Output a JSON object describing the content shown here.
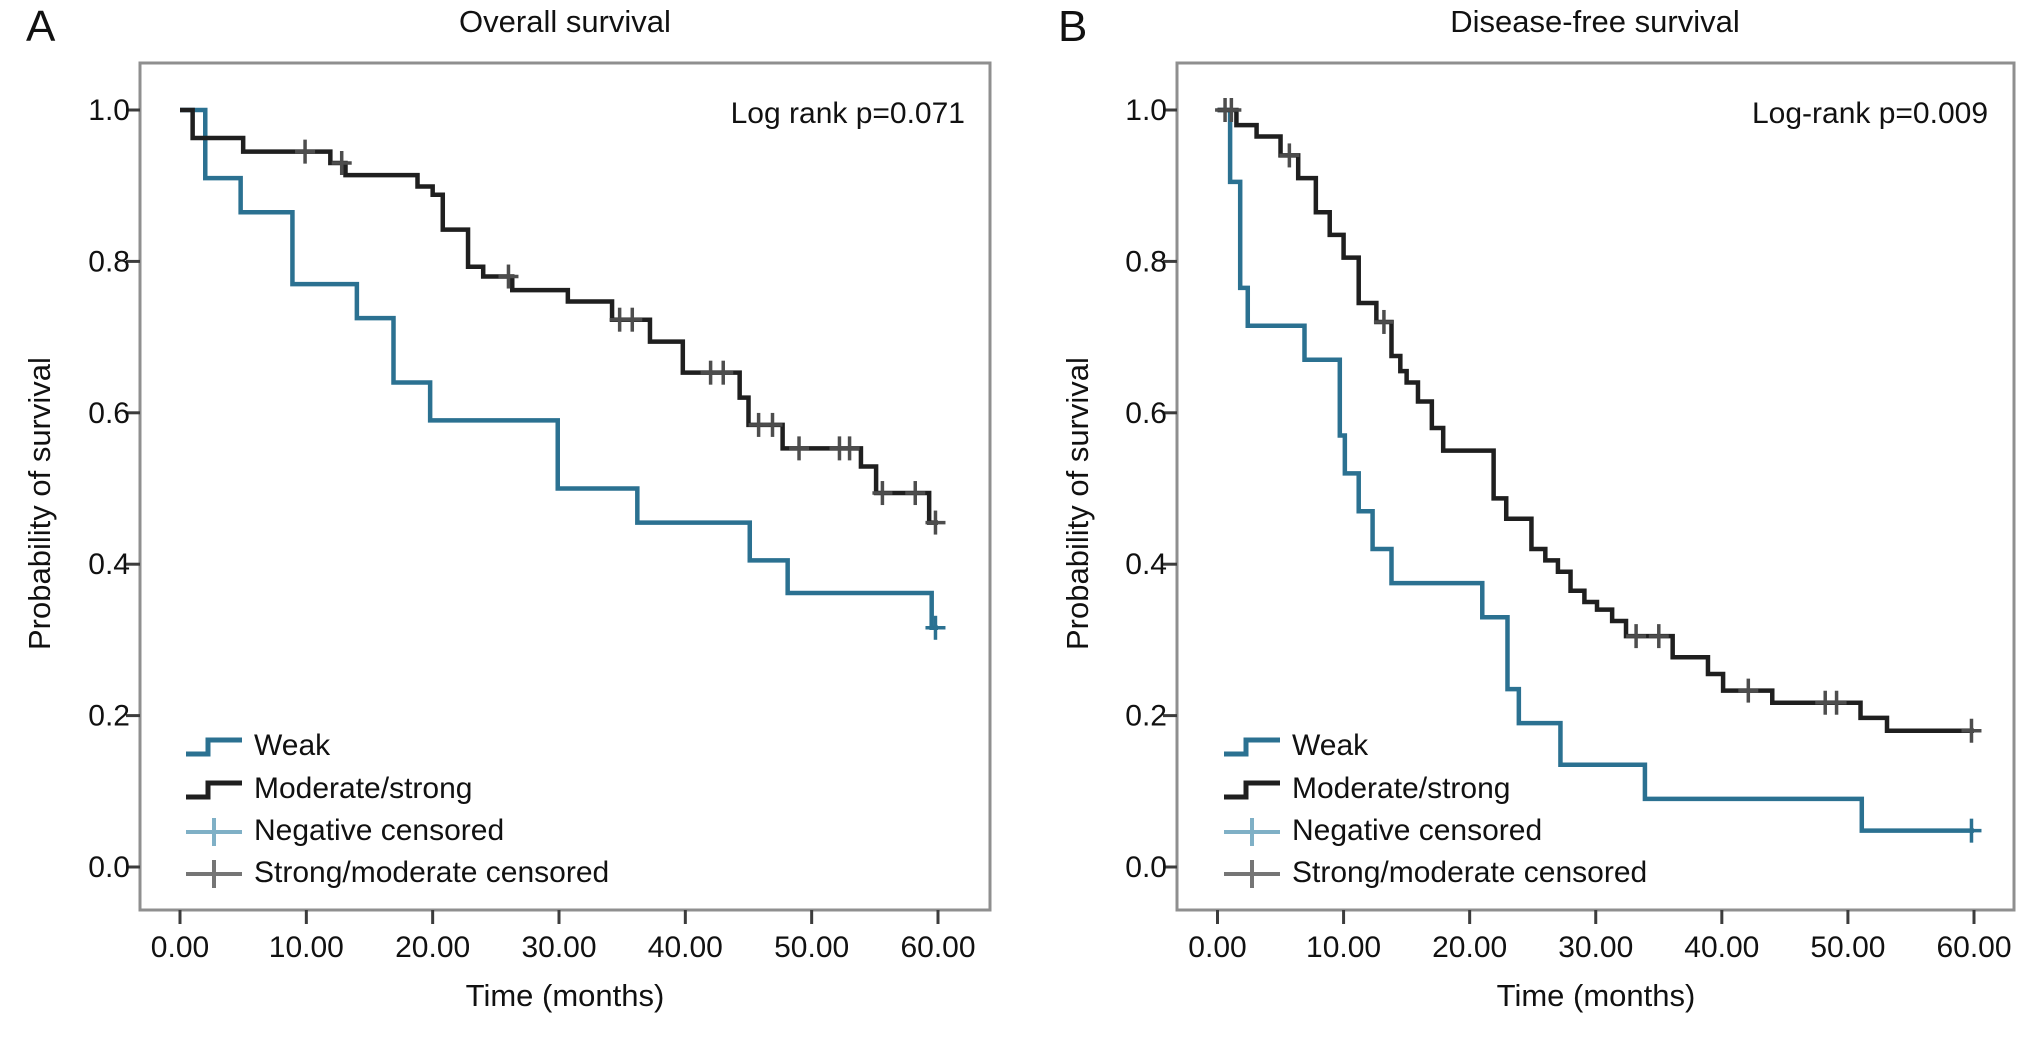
{
  "figure": {
    "background": "#ffffff",
    "border_color": "#8f8f8f",
    "tick_color": "#3c3c3c",
    "panels": [
      {
        "label": "A",
        "title": "Overall survival",
        "annotation": "Log rank p=0.071",
        "xlabel": "Time (months)",
        "ylabel": "Probability of survival",
        "legend": [
          {
            "label": "Weak",
            "swatch": "step",
            "color": "#2b7191"
          },
          {
            "label": "Moderate/strong",
            "swatch": "step",
            "color": "#1f1f1f"
          },
          {
            "label": "Negative censored",
            "swatch": "plus",
            "color": "#7fb0c6"
          },
          {
            "label": "Strong/moderate censored",
            "swatch": "plus",
            "color": "#757575"
          }
        ]
      },
      {
        "label": "B",
        "title": "Disease-free survival",
        "annotation": "Log-rank p=0.009",
        "xlabel": "Time (months)",
        "ylabel": "Probability of survival",
        "legend": [
          {
            "label": "Weak",
            "swatch": "step",
            "color": "#2b7191"
          },
          {
            "label": "Moderate/strong",
            "swatch": "step",
            "color": "#1f1f1f"
          },
          {
            "label": "Negative censored",
            "swatch": "plus",
            "color": "#7fb0c6"
          },
          {
            "label": "Strong/moderate censored",
            "swatch": "plus",
            "color": "#757575"
          }
        ]
      }
    ]
  },
  "chart_data": [
    {
      "type": "line",
      "subtype": "kaplan-meier-step",
      "title": "Overall survival",
      "xlabel": "Time (months)",
      "ylabel": "Probability of survival",
      "annotation": "Log rank p=0.071",
      "xlim": [
        0,
        60
      ],
      "ylim": [
        0.0,
        1.0
      ],
      "xtick_labels": [
        "0.00",
        "10.00",
        "20.00",
        "30.00",
        "40.00",
        "50.00",
        "60.00"
      ],
      "xtick_values": [
        0,
        10,
        20,
        30,
        40,
        50,
        60
      ],
      "ytick_labels": [
        "1.0",
        "0.8",
        "0.6",
        "0.4",
        "0.2",
        "0.0"
      ],
      "ytick_values": [
        1.0,
        0.8,
        0.6,
        0.4,
        0.2,
        0.0
      ],
      "grid": false,
      "legend_position": "lower-left",
      "series": [
        {
          "name": "Weak",
          "color": "#2b7191",
          "censor_color": "#2b7191",
          "points": [
            [
              0,
              1.0
            ],
            [
              2.0,
              0.91
            ],
            [
              4.8,
              0.865
            ],
            [
              8.9,
              0.77
            ],
            [
              14.0,
              0.725
            ],
            [
              16.9,
              0.64
            ],
            [
              19.8,
              0.59
            ],
            [
              29.9,
              0.5
            ],
            [
              36.2,
              0.455
            ],
            [
              45.1,
              0.405
            ],
            [
              48.1,
              0.362
            ],
            [
              59.5,
              0.316
            ]
          ],
          "censor_marks": [
            [
              59.8,
              0.316
            ]
          ]
        },
        {
          "name": "Moderate/strong",
          "color": "#1f1f1f",
          "censor_color": "#4d4d4d",
          "points": [
            [
              0,
              1.0
            ],
            [
              1.0,
              0.963
            ],
            [
              5.0,
              0.945
            ],
            [
              11.9,
              0.93
            ],
            [
              13.1,
              0.914
            ],
            [
              18.8,
              0.899
            ],
            [
              20.0,
              0.888
            ],
            [
              20.8,
              0.842
            ],
            [
              22.8,
              0.793
            ],
            [
              24.0,
              0.78
            ],
            [
              26.3,
              0.762
            ],
            [
              30.7,
              0.747
            ],
            [
              34.2,
              0.723
            ],
            [
              37.2,
              0.694
            ],
            [
              39.8,
              0.653
            ],
            [
              44.3,
              0.62
            ],
            [
              45.0,
              0.584
            ],
            [
              47.7,
              0.553
            ],
            [
              53.9,
              0.529
            ],
            [
              55.1,
              0.494
            ],
            [
              59.3,
              0.455
            ]
          ],
          "censor_marks": [
            [
              9.9,
              0.945
            ],
            [
              12.8,
              0.93
            ],
            [
              26.0,
              0.78
            ],
            [
              34.8,
              0.723
            ],
            [
              35.8,
              0.723
            ],
            [
              42.0,
              0.653
            ],
            [
              43.0,
              0.653
            ],
            [
              45.8,
              0.584
            ],
            [
              46.9,
              0.584
            ],
            [
              49.0,
              0.553
            ],
            [
              52.2,
              0.553
            ],
            [
              53.0,
              0.553
            ],
            [
              55.6,
              0.494
            ],
            [
              58.2,
              0.494
            ],
            [
              59.8,
              0.455
            ]
          ]
        }
      ]
    },
    {
      "type": "line",
      "subtype": "kaplan-meier-step",
      "title": "Disease-free survival",
      "xlabel": "Time (months)",
      "ylabel": "Probability of survival",
      "annotation": "Log-rank p=0.009",
      "xlim": [
        0,
        60
      ],
      "ylim": [
        0.0,
        1.0
      ],
      "xtick_labels": [
        "0.00",
        "10.00",
        "20.00",
        "30.00",
        "40.00",
        "50.00",
        "60.00"
      ],
      "xtick_values": [
        0,
        10,
        20,
        30,
        40,
        50,
        60
      ],
      "ytick_labels": [
        "1.0",
        "0.8",
        "0.6",
        "0.4",
        "0.2",
        "0.0"
      ],
      "ytick_values": [
        1.0,
        0.8,
        0.6,
        0.4,
        0.2,
        0.0
      ],
      "grid": false,
      "legend_position": "lower-left",
      "series": [
        {
          "name": "Weak",
          "color": "#2b7191",
          "censor_color": "#2b7191",
          "points": [
            [
              0,
              1.0
            ],
            [
              1.0,
              0.905
            ],
            [
              1.8,
              0.765
            ],
            [
              2.4,
              0.715
            ],
            [
              6.9,
              0.67
            ],
            [
              9.7,
              0.57
            ],
            [
              10.1,
              0.52
            ],
            [
              11.2,
              0.47
            ],
            [
              12.3,
              0.42
            ],
            [
              13.8,
              0.375
            ],
            [
              21.0,
              0.33
            ],
            [
              23.0,
              0.235
            ],
            [
              23.9,
              0.19
            ],
            [
              27.2,
              0.135
            ],
            [
              33.9,
              0.09
            ],
            [
              51.1,
              0.048
            ]
          ],
          "censor_marks": [
            [
              59.8,
              0.048
            ]
          ]
        },
        {
          "name": "Moderate/strong",
          "color": "#1f1f1f",
          "censor_color": "#4d4d4d",
          "points": [
            [
              0,
              1.0
            ],
            [
              1.5,
              0.98
            ],
            [
              3.1,
              0.965
            ],
            [
              5.0,
              0.94
            ],
            [
              6.4,
              0.91
            ],
            [
              7.8,
              0.865
            ],
            [
              8.9,
              0.835
            ],
            [
              10.0,
              0.805
            ],
            [
              11.2,
              0.745
            ],
            [
              12.6,
              0.72
            ],
            [
              13.8,
              0.675
            ],
            [
              14.5,
              0.655
            ],
            [
              15.0,
              0.64
            ],
            [
              15.9,
              0.615
            ],
            [
              17.0,
              0.58
            ],
            [
              17.9,
              0.55
            ],
            [
              21.9,
              0.487
            ],
            [
              22.9,
              0.46
            ],
            [
              24.9,
              0.42
            ],
            [
              26.0,
              0.405
            ],
            [
              27.0,
              0.39
            ],
            [
              28.0,
              0.365
            ],
            [
              29.1,
              0.35
            ],
            [
              30.1,
              0.34
            ],
            [
              31.3,
              0.325
            ],
            [
              32.4,
              0.305
            ],
            [
              36.1,
              0.277
            ],
            [
              38.9,
              0.255
            ],
            [
              40.1,
              0.233
            ],
            [
              44.0,
              0.217
            ],
            [
              51.0,
              0.197
            ],
            [
              53.1,
              0.18
            ]
          ],
          "censor_marks": [
            [
              0.6,
              1.0
            ],
            [
              1.1,
              1.0
            ],
            [
              5.7,
              0.94
            ],
            [
              13.2,
              0.72
            ],
            [
              33.2,
              0.305
            ],
            [
              35.0,
              0.305
            ],
            [
              42.1,
              0.233
            ],
            [
              48.2,
              0.217
            ],
            [
              49.1,
              0.217
            ],
            [
              59.8,
              0.18
            ]
          ]
        }
      ]
    }
  ]
}
